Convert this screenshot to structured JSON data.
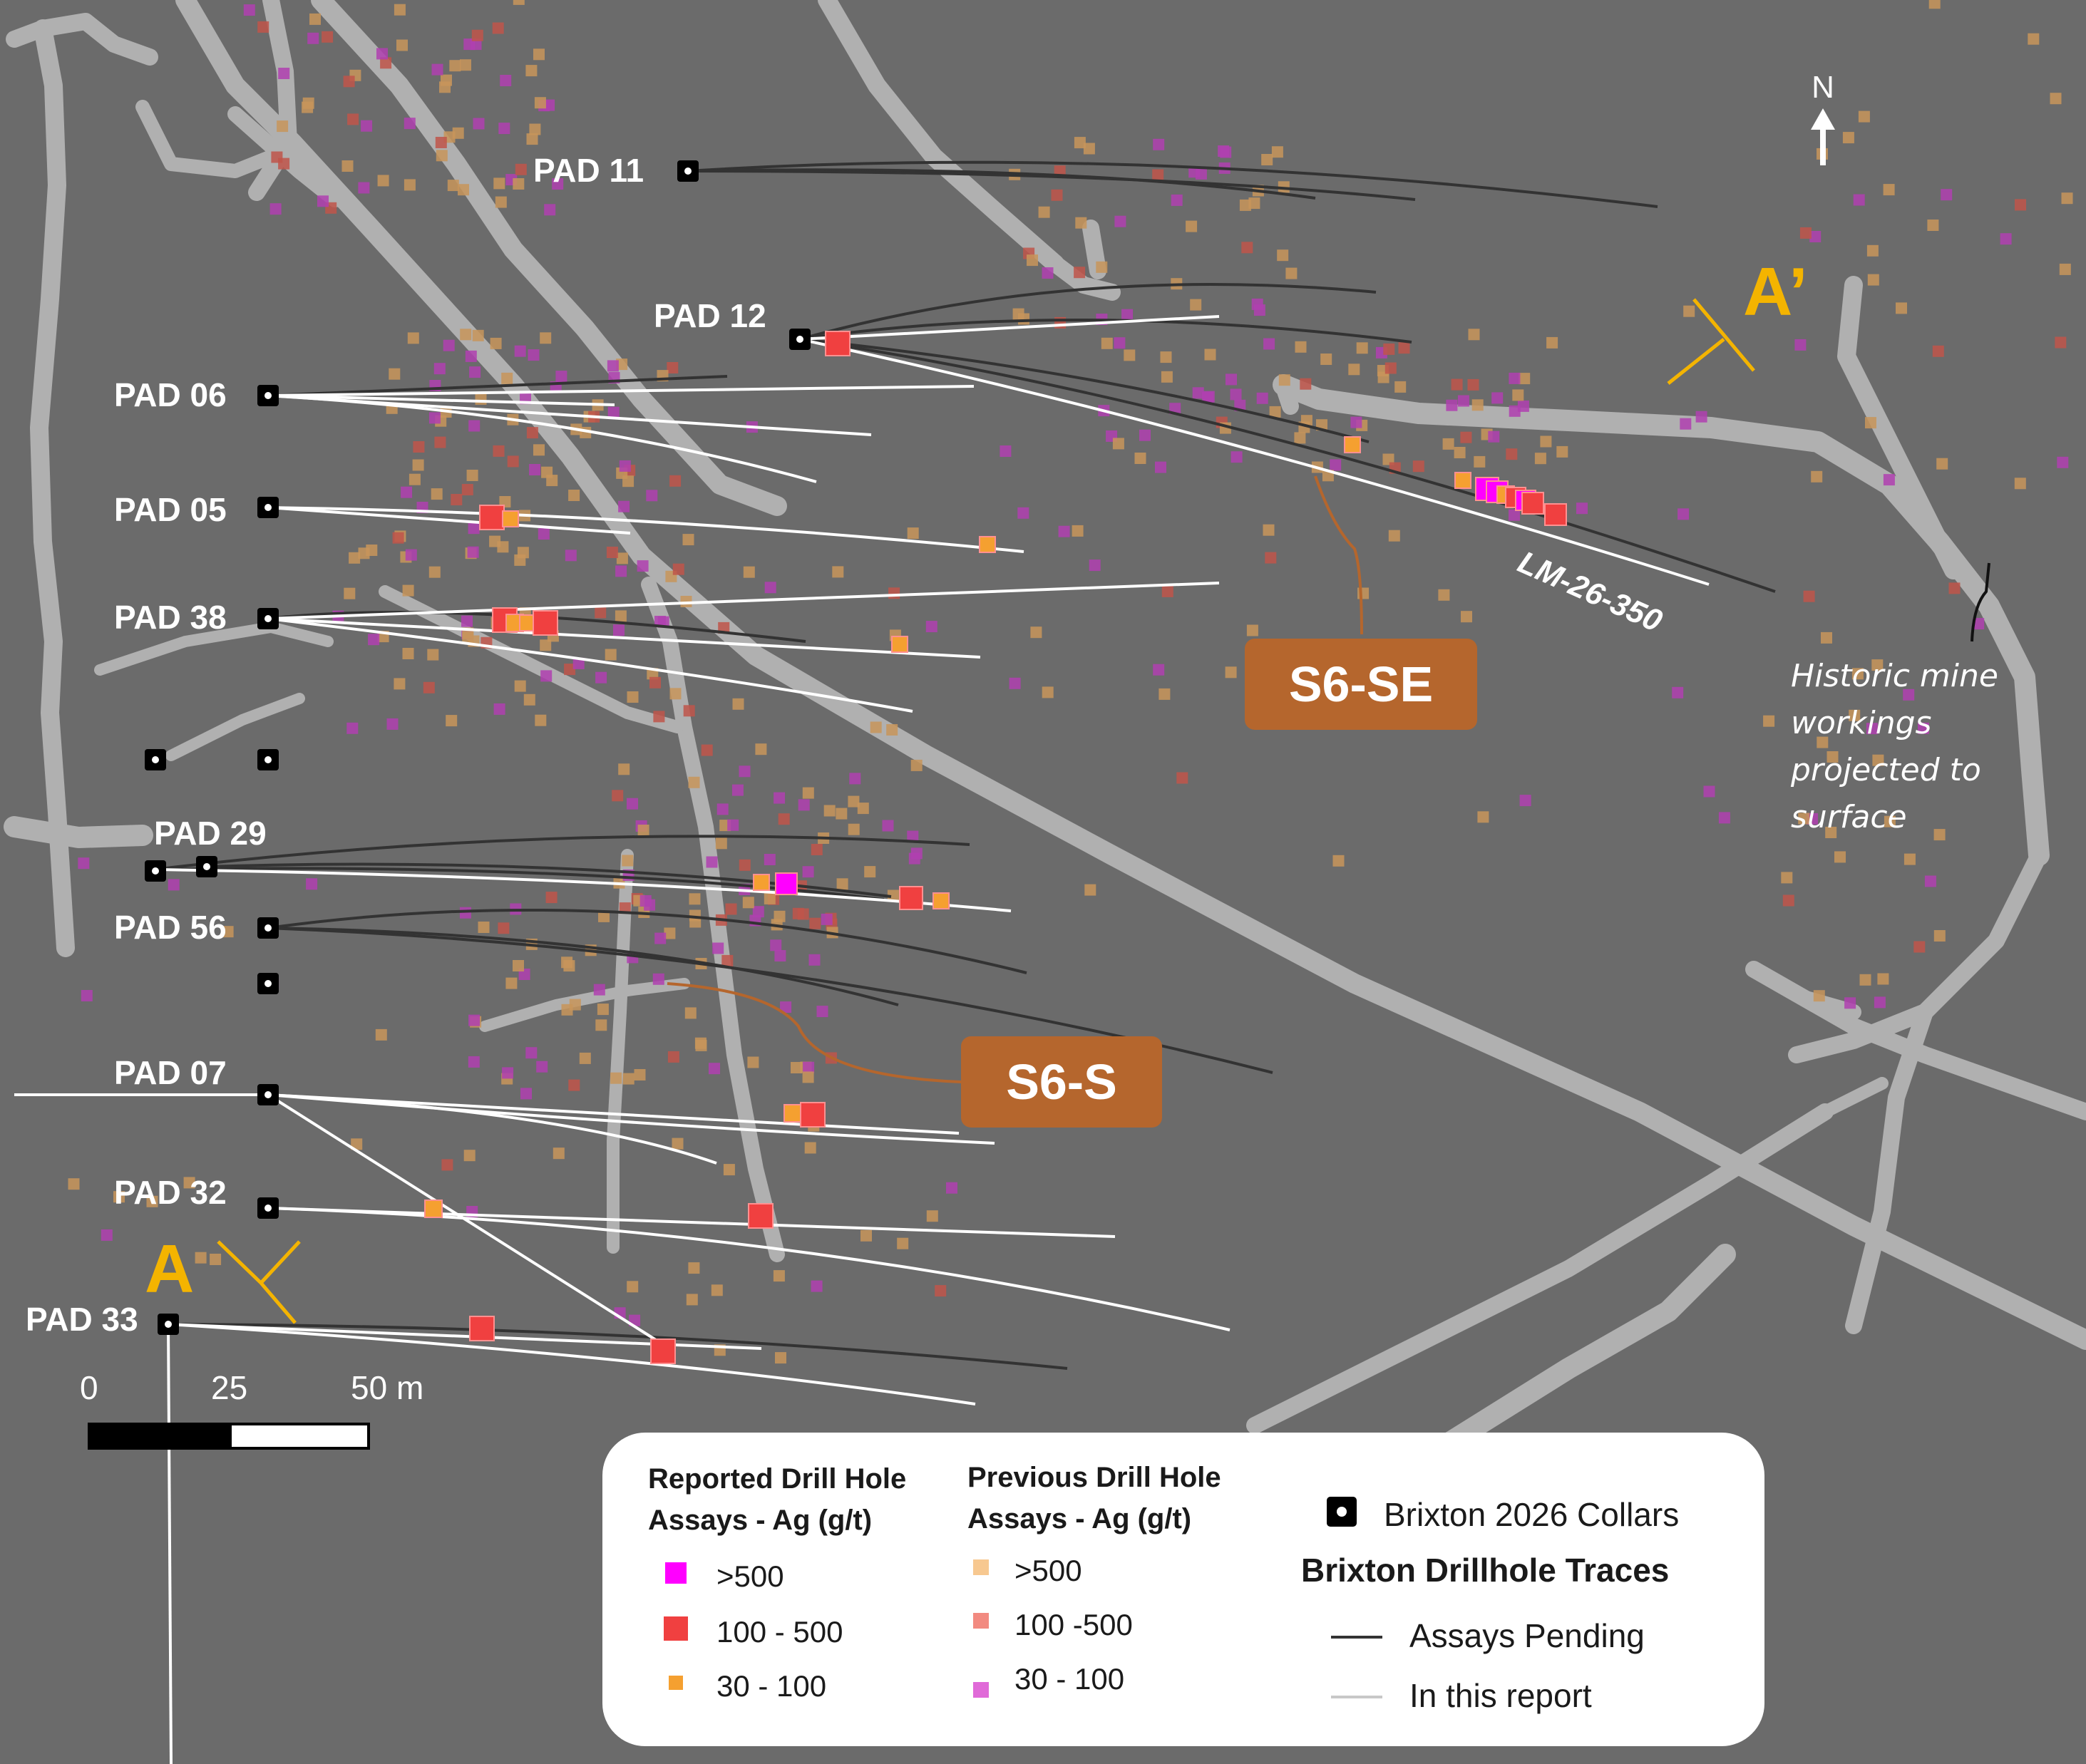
{
  "map": {
    "pads": [
      {
        "label": "PAD 11"
      },
      {
        "label": "PAD 12"
      },
      {
        "label": "PAD 06"
      },
      {
        "label": "PAD 05"
      },
      {
        "label": "PAD 38"
      },
      {
        "label": "PAD 29"
      },
      {
        "label": "PAD 56"
      },
      {
        "label": "PAD 07"
      },
      {
        "label": "PAD 32"
      },
      {
        "label": "PAD 33"
      }
    ],
    "section_start": "A",
    "section_end": "A’",
    "zones": {
      "southeast": "S6-SE",
      "south": "S6-S"
    },
    "hole_label": "LM-26-350",
    "historic_note": [
      "Historic mine",
      "workings",
      "projected to",
      "surface"
    ],
    "north_label": "N",
    "scale": {
      "ticks": [
        "0",
        "25",
        "50 m"
      ]
    },
    "colors": {
      "background": "#6b6b6b",
      "workings": "#b0b0b0",
      "trace_pending": "#333333",
      "trace_reported": "#ffffff",
      "section_line": "#f4b400",
      "zone_fill": "#b5662d",
      "assay_gt500": "#ff00ff",
      "assay_100_500": "#f04040",
      "assay_30_100": "#f5a030",
      "prev_gt500": "#c8955a",
      "prev_100_500": "#c0554a",
      "prev_30_100": "#b03fb0"
    }
  },
  "legend": {
    "reported_title": [
      "Reported Drill Hole",
      "Assays - Ag (g/t)"
    ],
    "reported_items": [
      ">500",
      "100 - 500",
      "30 - 100"
    ],
    "previous_title": [
      "Previous Drill Hole",
      "Assays - Ag (g/t)"
    ],
    "previous_items": [
      ">500",
      "100 -500",
      "30 - 100"
    ],
    "collars_label": "Brixton 2026 Collars",
    "traces_title": "Brixton Drillhole Traces",
    "trace_pending_label": "Assays Pending",
    "trace_reported_label": "In this report"
  }
}
